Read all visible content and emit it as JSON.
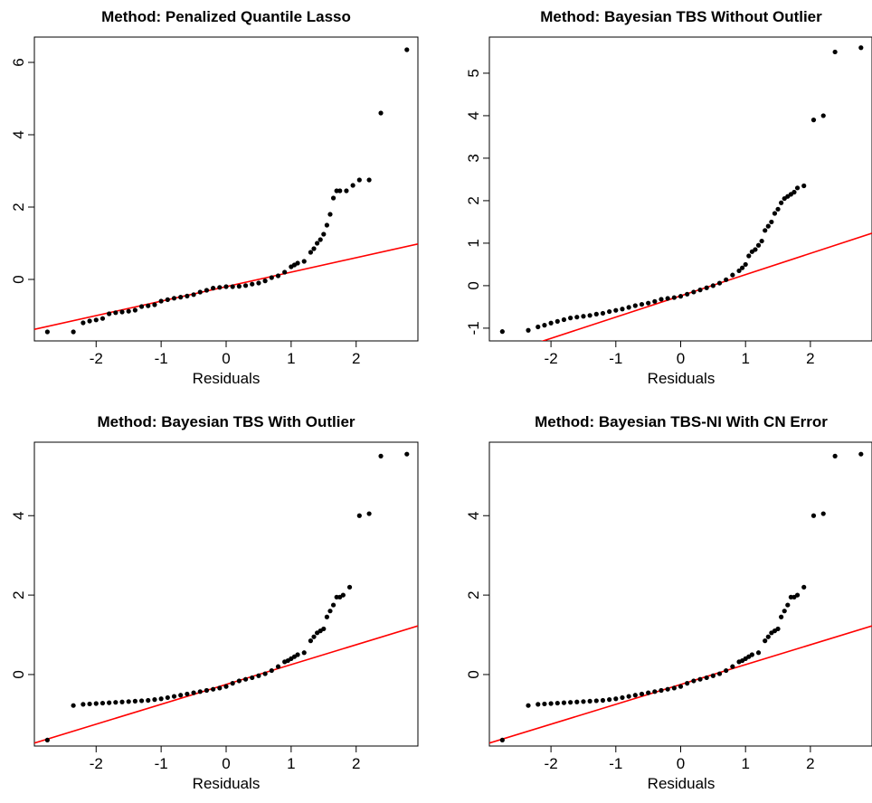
{
  "colors": {
    "points": "#000000",
    "reference_line": "#ff0000",
    "frame": "#000000"
  },
  "chart_data": [
    {
      "type": "scatter",
      "subtype": "normal Q-Q plot",
      "title": "Method: Penalized Quantile Lasso",
      "xlabel": "Residuals",
      "ylabel": "",
      "xlim": [
        -2.95,
        2.95
      ],
      "ylim": [
        -1.7,
        6.7
      ],
      "xticks": [
        -2,
        -1,
        0,
        1,
        2
      ],
      "yticks": [
        0,
        2,
        4,
        6
      ],
      "grid": false,
      "reference_line": {
        "intercept": -0.2,
        "slope": 0.4
      },
      "points": {
        "x": [
          -2.75,
          -2.35,
          -2.2,
          -2.1,
          -2.0,
          -1.9,
          -1.8,
          -1.7,
          -1.6,
          -1.5,
          -1.4,
          -1.3,
          -1.2,
          -1.1,
          -1.0,
          -0.9,
          -0.8,
          -0.7,
          -0.6,
          -0.5,
          -0.4,
          -0.3,
          -0.2,
          -0.1,
          0.0,
          0.1,
          0.2,
          0.3,
          0.4,
          0.5,
          0.6,
          0.7,
          0.8,
          0.9,
          1.0,
          1.05,
          1.1,
          1.2,
          1.3,
          1.35,
          1.4,
          1.45,
          1.5,
          1.55,
          1.6,
          1.65,
          1.7,
          1.75,
          1.85,
          1.95,
          2.05,
          2.2,
          2.38,
          2.78
        ],
        "y": [
          -1.45,
          -1.45,
          -1.2,
          -1.15,
          -1.12,
          -1.08,
          -0.95,
          -0.92,
          -0.9,
          -0.88,
          -0.85,
          -0.75,
          -0.73,
          -0.7,
          -0.6,
          -0.56,
          -0.52,
          -0.49,
          -0.46,
          -0.42,
          -0.35,
          -0.3,
          -0.24,
          -0.22,
          -0.2,
          -0.2,
          -0.19,
          -0.17,
          -0.13,
          -0.1,
          -0.04,
          0.05,
          0.1,
          0.2,
          0.35,
          0.4,
          0.45,
          0.5,
          0.75,
          0.85,
          1.0,
          1.1,
          1.25,
          1.5,
          1.8,
          2.25,
          2.45,
          2.45,
          2.45,
          2.6,
          2.75,
          2.75,
          4.6,
          6.35
        ]
      }
    },
    {
      "type": "scatter",
      "subtype": "normal Q-Q plot",
      "title": "Method: Bayesian TBS Without Outlier",
      "xlabel": "Residuals",
      "ylabel": "",
      "xlim": [
        -2.95,
        2.95
      ],
      "ylim": [
        -1.3,
        5.85
      ],
      "xticks": [
        -2,
        -1,
        0,
        1,
        2
      ],
      "yticks": [
        -1,
        0,
        1,
        2,
        3,
        4,
        5
      ],
      "grid": false,
      "reference_line": {
        "intercept": -0.24,
        "slope": 0.5
      },
      "points": {
        "x": [
          -2.75,
          -2.35,
          -2.2,
          -2.1,
          -2.0,
          -1.9,
          -1.8,
          -1.7,
          -1.6,
          -1.5,
          -1.4,
          -1.3,
          -1.2,
          -1.1,
          -1.0,
          -0.9,
          -0.8,
          -0.7,
          -0.6,
          -0.5,
          -0.4,
          -0.3,
          -0.2,
          -0.1,
          0.0,
          0.1,
          0.2,
          0.3,
          0.4,
          0.5,
          0.6,
          0.7,
          0.8,
          0.9,
          0.95,
          1.0,
          1.05,
          1.1,
          1.15,
          1.2,
          1.25,
          1.3,
          1.35,
          1.4,
          1.45,
          1.5,
          1.55,
          1.6,
          1.65,
          1.7,
          1.75,
          1.8,
          1.9,
          2.05,
          2.2,
          2.38,
          2.78
        ],
        "y": [
          -1.08,
          -1.05,
          -0.97,
          -0.93,
          -0.88,
          -0.84,
          -0.8,
          -0.76,
          -0.74,
          -0.72,
          -0.7,
          -0.67,
          -0.65,
          -0.61,
          -0.58,
          -0.55,
          -0.51,
          -0.47,
          -0.44,
          -0.41,
          -0.37,
          -0.32,
          -0.3,
          -0.28,
          -0.25,
          -0.2,
          -0.15,
          -0.1,
          -0.05,
          0.0,
          0.06,
          0.14,
          0.25,
          0.35,
          0.42,
          0.5,
          0.7,
          0.8,
          0.85,
          0.95,
          1.05,
          1.3,
          1.4,
          1.5,
          1.7,
          1.8,
          1.95,
          2.05,
          2.1,
          2.15,
          2.2,
          2.3,
          2.35,
          3.9,
          4.0,
          5.5,
          5.6
        ]
      }
    },
    {
      "type": "scatter",
      "subtype": "normal Q-Q plot",
      "title": "Method: Bayesian TBS With Outlier",
      "xlabel": "Residuals",
      "ylabel": "",
      "xlim": [
        -2.95,
        2.95
      ],
      "ylim": [
        -1.8,
        5.85
      ],
      "xticks": [
        -2,
        -1,
        0,
        1,
        2
      ],
      "yticks": [
        0,
        2,
        4
      ],
      "grid": false,
      "reference_line": {
        "intercept": -0.25,
        "slope": 0.5
      },
      "points": {
        "x": [
          -2.75,
          -2.35,
          -2.2,
          -2.1,
          -2.0,
          -1.9,
          -1.8,
          -1.7,
          -1.6,
          -1.5,
          -1.4,
          -1.3,
          -1.2,
          -1.1,
          -1.0,
          -0.9,
          -0.8,
          -0.7,
          -0.6,
          -0.5,
          -0.4,
          -0.3,
          -0.2,
          -0.1,
          0.0,
          0.1,
          0.2,
          0.3,
          0.4,
          0.5,
          0.6,
          0.7,
          0.8,
          0.9,
          0.95,
          1.0,
          1.05,
          1.1,
          1.2,
          1.3,
          1.35,
          1.4,
          1.45,
          1.5,
          1.55,
          1.6,
          1.65,
          1.7,
          1.75,
          1.8,
          1.9,
          2.05,
          2.2,
          2.38,
          2.78
        ],
        "y": [
          -1.65,
          -0.78,
          -0.75,
          -0.74,
          -0.73,
          -0.72,
          -0.71,
          -0.7,
          -0.69,
          -0.68,
          -0.67,
          -0.66,
          -0.65,
          -0.63,
          -0.61,
          -0.58,
          -0.55,
          -0.52,
          -0.49,
          -0.46,
          -0.43,
          -0.4,
          -0.37,
          -0.34,
          -0.3,
          -0.22,
          -0.16,
          -0.12,
          -0.08,
          -0.03,
          0.02,
          0.1,
          0.2,
          0.32,
          0.35,
          0.4,
          0.45,
          0.5,
          0.55,
          0.85,
          0.95,
          1.05,
          1.1,
          1.15,
          1.45,
          1.6,
          1.75,
          1.95,
          1.95,
          2.0,
          2.2,
          4.0,
          4.05,
          5.5,
          5.55
        ]
      }
    },
    {
      "type": "scatter",
      "subtype": "normal Q-Q plot",
      "title": "Method: Bayesian TBS-NI With CN Error",
      "xlabel": "Residuals",
      "ylabel": "",
      "xlim": [
        -2.95,
        2.95
      ],
      "ylim": [
        -1.8,
        5.85
      ],
      "xticks": [
        -2,
        -1,
        0,
        1,
        2
      ],
      "yticks": [
        0,
        2,
        4
      ],
      "grid": false,
      "reference_line": {
        "intercept": -0.25,
        "slope": 0.5
      },
      "points": {
        "x": [
          -2.75,
          -2.35,
          -2.2,
          -2.1,
          -2.0,
          -1.9,
          -1.8,
          -1.7,
          -1.6,
          -1.5,
          -1.4,
          -1.3,
          -1.2,
          -1.1,
          -1.0,
          -0.9,
          -0.8,
          -0.7,
          -0.6,
          -0.5,
          -0.4,
          -0.3,
          -0.2,
          -0.1,
          0.0,
          0.1,
          0.2,
          0.3,
          0.4,
          0.5,
          0.6,
          0.7,
          0.8,
          0.9,
          0.95,
          1.0,
          1.05,
          1.1,
          1.2,
          1.3,
          1.35,
          1.4,
          1.45,
          1.5,
          1.55,
          1.6,
          1.65,
          1.7,
          1.75,
          1.8,
          1.9,
          2.05,
          2.2,
          2.38,
          2.78
        ],
        "y": [
          -1.65,
          -0.78,
          -0.75,
          -0.74,
          -0.73,
          -0.72,
          -0.71,
          -0.7,
          -0.69,
          -0.68,
          -0.67,
          -0.66,
          -0.65,
          -0.63,
          -0.61,
          -0.58,
          -0.55,
          -0.52,
          -0.49,
          -0.46,
          -0.43,
          -0.4,
          -0.37,
          -0.34,
          -0.3,
          -0.22,
          -0.16,
          -0.12,
          -0.08,
          -0.03,
          0.02,
          0.1,
          0.2,
          0.32,
          0.35,
          0.4,
          0.45,
          0.5,
          0.55,
          0.85,
          0.95,
          1.05,
          1.1,
          1.15,
          1.45,
          1.6,
          1.75,
          1.95,
          1.95,
          2.0,
          2.2,
          4.0,
          4.05,
          5.5,
          5.55
        ]
      }
    }
  ]
}
